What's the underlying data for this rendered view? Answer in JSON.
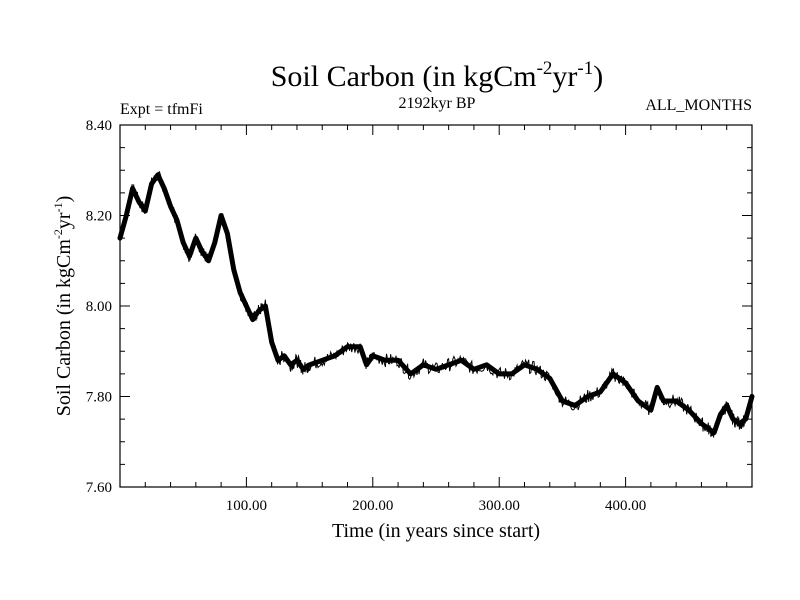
{
  "chart_data": {
    "type": "line",
    "title_main": "Soil Carbon (in kgCm",
    "title_sup1": "-2",
    "title_mid": "yr",
    "title_sup2": "-1",
    "title_end": ")",
    "left_label": "Expt = tfmFi",
    "center_label": "2192kyr BP",
    "right_label": "ALL_MONTHS",
    "xlabel": "Time (in years since start)",
    "ylabel_main": "Soil Carbon (in kgCm",
    "ylabel_sup1": "-2",
    "ylabel_mid": "yr",
    "ylabel_sup2": "-1",
    "ylabel_end": ")",
    "xlim": [
      0,
      500
    ],
    "ylim": [
      7.6,
      8.4
    ],
    "x_ticks": [
      100,
      200,
      300,
      400
    ],
    "x_tick_labels": [
      "100.00",
      "200.00",
      "300.00",
      "400.00"
    ],
    "y_ticks": [
      7.6,
      7.8,
      8.0,
      8.2,
      8.4
    ],
    "y_tick_labels": [
      "7.60",
      "7.80",
      "8.00",
      "8.20",
      "8.40"
    ],
    "series": [
      {
        "name": "Soil Carbon",
        "color": "#000000",
        "x": [
          0,
          5,
          10,
          15,
          20,
          25,
          30,
          35,
          40,
          45,
          50,
          55,
          60,
          65,
          70,
          75,
          80,
          85,
          90,
          95,
          100,
          105,
          110,
          115,
          120,
          125,
          130,
          135,
          140,
          145,
          150,
          160,
          170,
          180,
          190,
          195,
          200,
          210,
          220,
          230,
          240,
          250,
          260,
          270,
          280,
          290,
          300,
          310,
          320,
          330,
          340,
          350,
          360,
          370,
          380,
          390,
          395,
          400,
          410,
          420,
          425,
          430,
          440,
          450,
          460,
          465,
          470,
          475,
          480,
          485,
          490,
          495,
          500
        ],
        "values": [
          8.15,
          8.2,
          8.26,
          8.23,
          8.21,
          8.27,
          8.29,
          8.26,
          8.22,
          8.19,
          8.14,
          8.11,
          8.15,
          8.12,
          8.1,
          8.14,
          8.2,
          8.16,
          8.08,
          8.03,
          8.0,
          7.97,
          7.99,
          8.0,
          7.92,
          7.88,
          7.89,
          7.87,
          7.88,
          7.86,
          7.87,
          7.88,
          7.89,
          7.91,
          7.91,
          7.87,
          7.89,
          7.88,
          7.88,
          7.85,
          7.87,
          7.86,
          7.87,
          7.88,
          7.86,
          7.87,
          7.85,
          7.85,
          7.87,
          7.86,
          7.84,
          7.79,
          7.78,
          7.8,
          7.81,
          7.85,
          7.84,
          7.83,
          7.79,
          7.77,
          7.82,
          7.79,
          7.79,
          7.77,
          7.74,
          7.73,
          7.72,
          7.76,
          7.78,
          7.75,
          7.74,
          7.75,
          7.8
        ]
      }
    ]
  }
}
